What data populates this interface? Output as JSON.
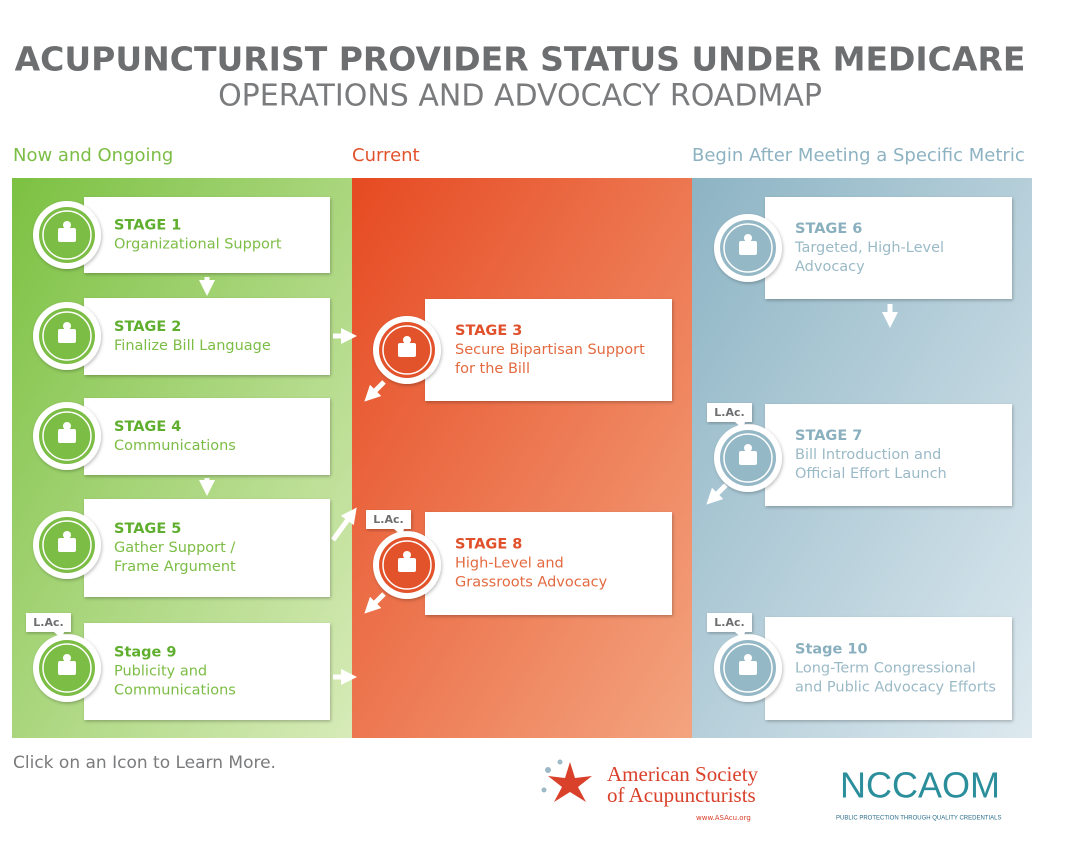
{
  "header": {
    "title": "ACUPUNCTURIST PROVIDER STATUS UNDER MEDICARE",
    "subtitle": "OPERATIONS AND ADVOCACY ROADMAP"
  },
  "columns": [
    "Now and Ongoing",
    "Current",
    "Begin After Meeting a Specific Metric"
  ],
  "stages": [
    {
      "title": "STAGE 1",
      "lines": [
        "Organizational Support"
      ]
    },
    {
      "title": "STAGE 2",
      "lines": [
        "Finalize Bill Language"
      ]
    },
    {
      "title": "STAGE 3",
      "lines": [
        "Secure Bipartisan Support",
        "for the Bill"
      ]
    },
    {
      "title": "STAGE 4",
      "lines": [
        "Communications"
      ]
    },
    {
      "title": "STAGE 5",
      "lines": [
        "Gather Support /",
        "Frame Argument"
      ]
    },
    {
      "title": "STAGE 6",
      "lines": [
        "Targeted, High-Level",
        "Advocacy"
      ]
    },
    {
      "title": "STAGE 7",
      "lines": [
        "Bill Introduction and",
        "Official Effort Launch"
      ],
      "tag": "L.Ac."
    },
    {
      "title": "STAGE 8",
      "lines": [
        "High-Level and",
        "Grassroots Advocacy"
      ],
      "tag": "L.Ac."
    },
    {
      "title": "Stage 9",
      "lines": [
        "Publicity and",
        "Communications"
      ],
      "tag": "L.Ac."
    },
    {
      "title": "Stage 10",
      "lines": [
        "Long-Term Congressional",
        "and Public Advocacy Efforts"
      ],
      "tag": "L.Ac."
    }
  ],
  "footer": {
    "instruction": "Click on an Icon to Learn More.",
    "asa": {
      "line1": "American Society",
      "line2": "of Acupuncturists",
      "url": "www.ASAcu.org"
    },
    "nccaom": {
      "name": "NCCAOM",
      "tagline": "PUBLIC PROTECTION THROUGH QUALITY CREDENTIALS"
    }
  }
}
